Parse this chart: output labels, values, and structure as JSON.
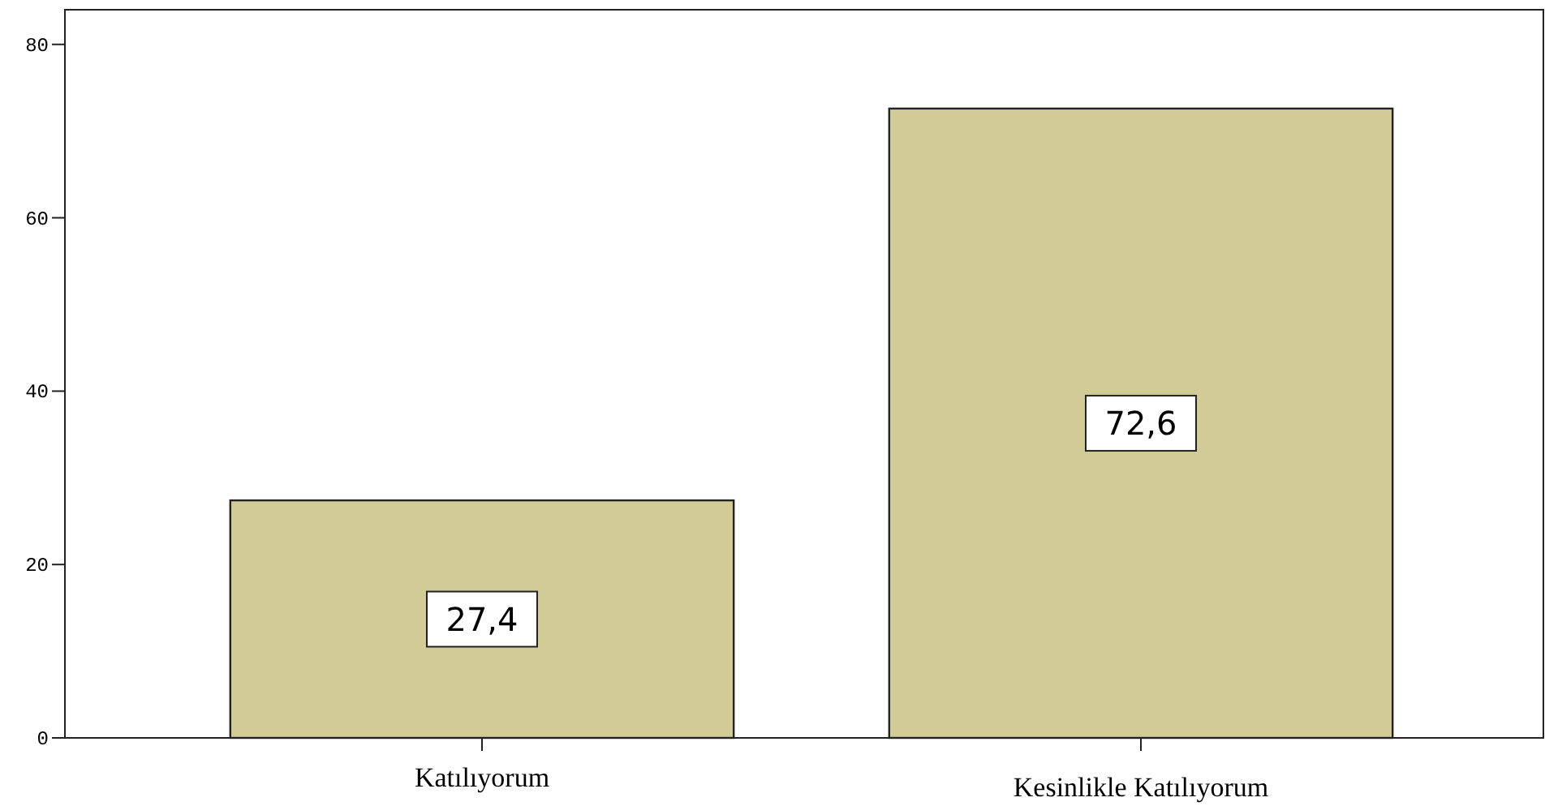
{
  "chart_data": {
    "type": "bar",
    "categories": [
      "Katılıyorum",
      "Kesinlikle Katılıyorum"
    ],
    "values": [
      27.4,
      72.6
    ],
    "value_labels": [
      "27,4",
      "72,6"
    ],
    "color": "#d1cb96",
    "ylim": [
      0,
      84
    ],
    "yticks": [
      0,
      20,
      40,
      60,
      80
    ],
    "grid": false
  }
}
